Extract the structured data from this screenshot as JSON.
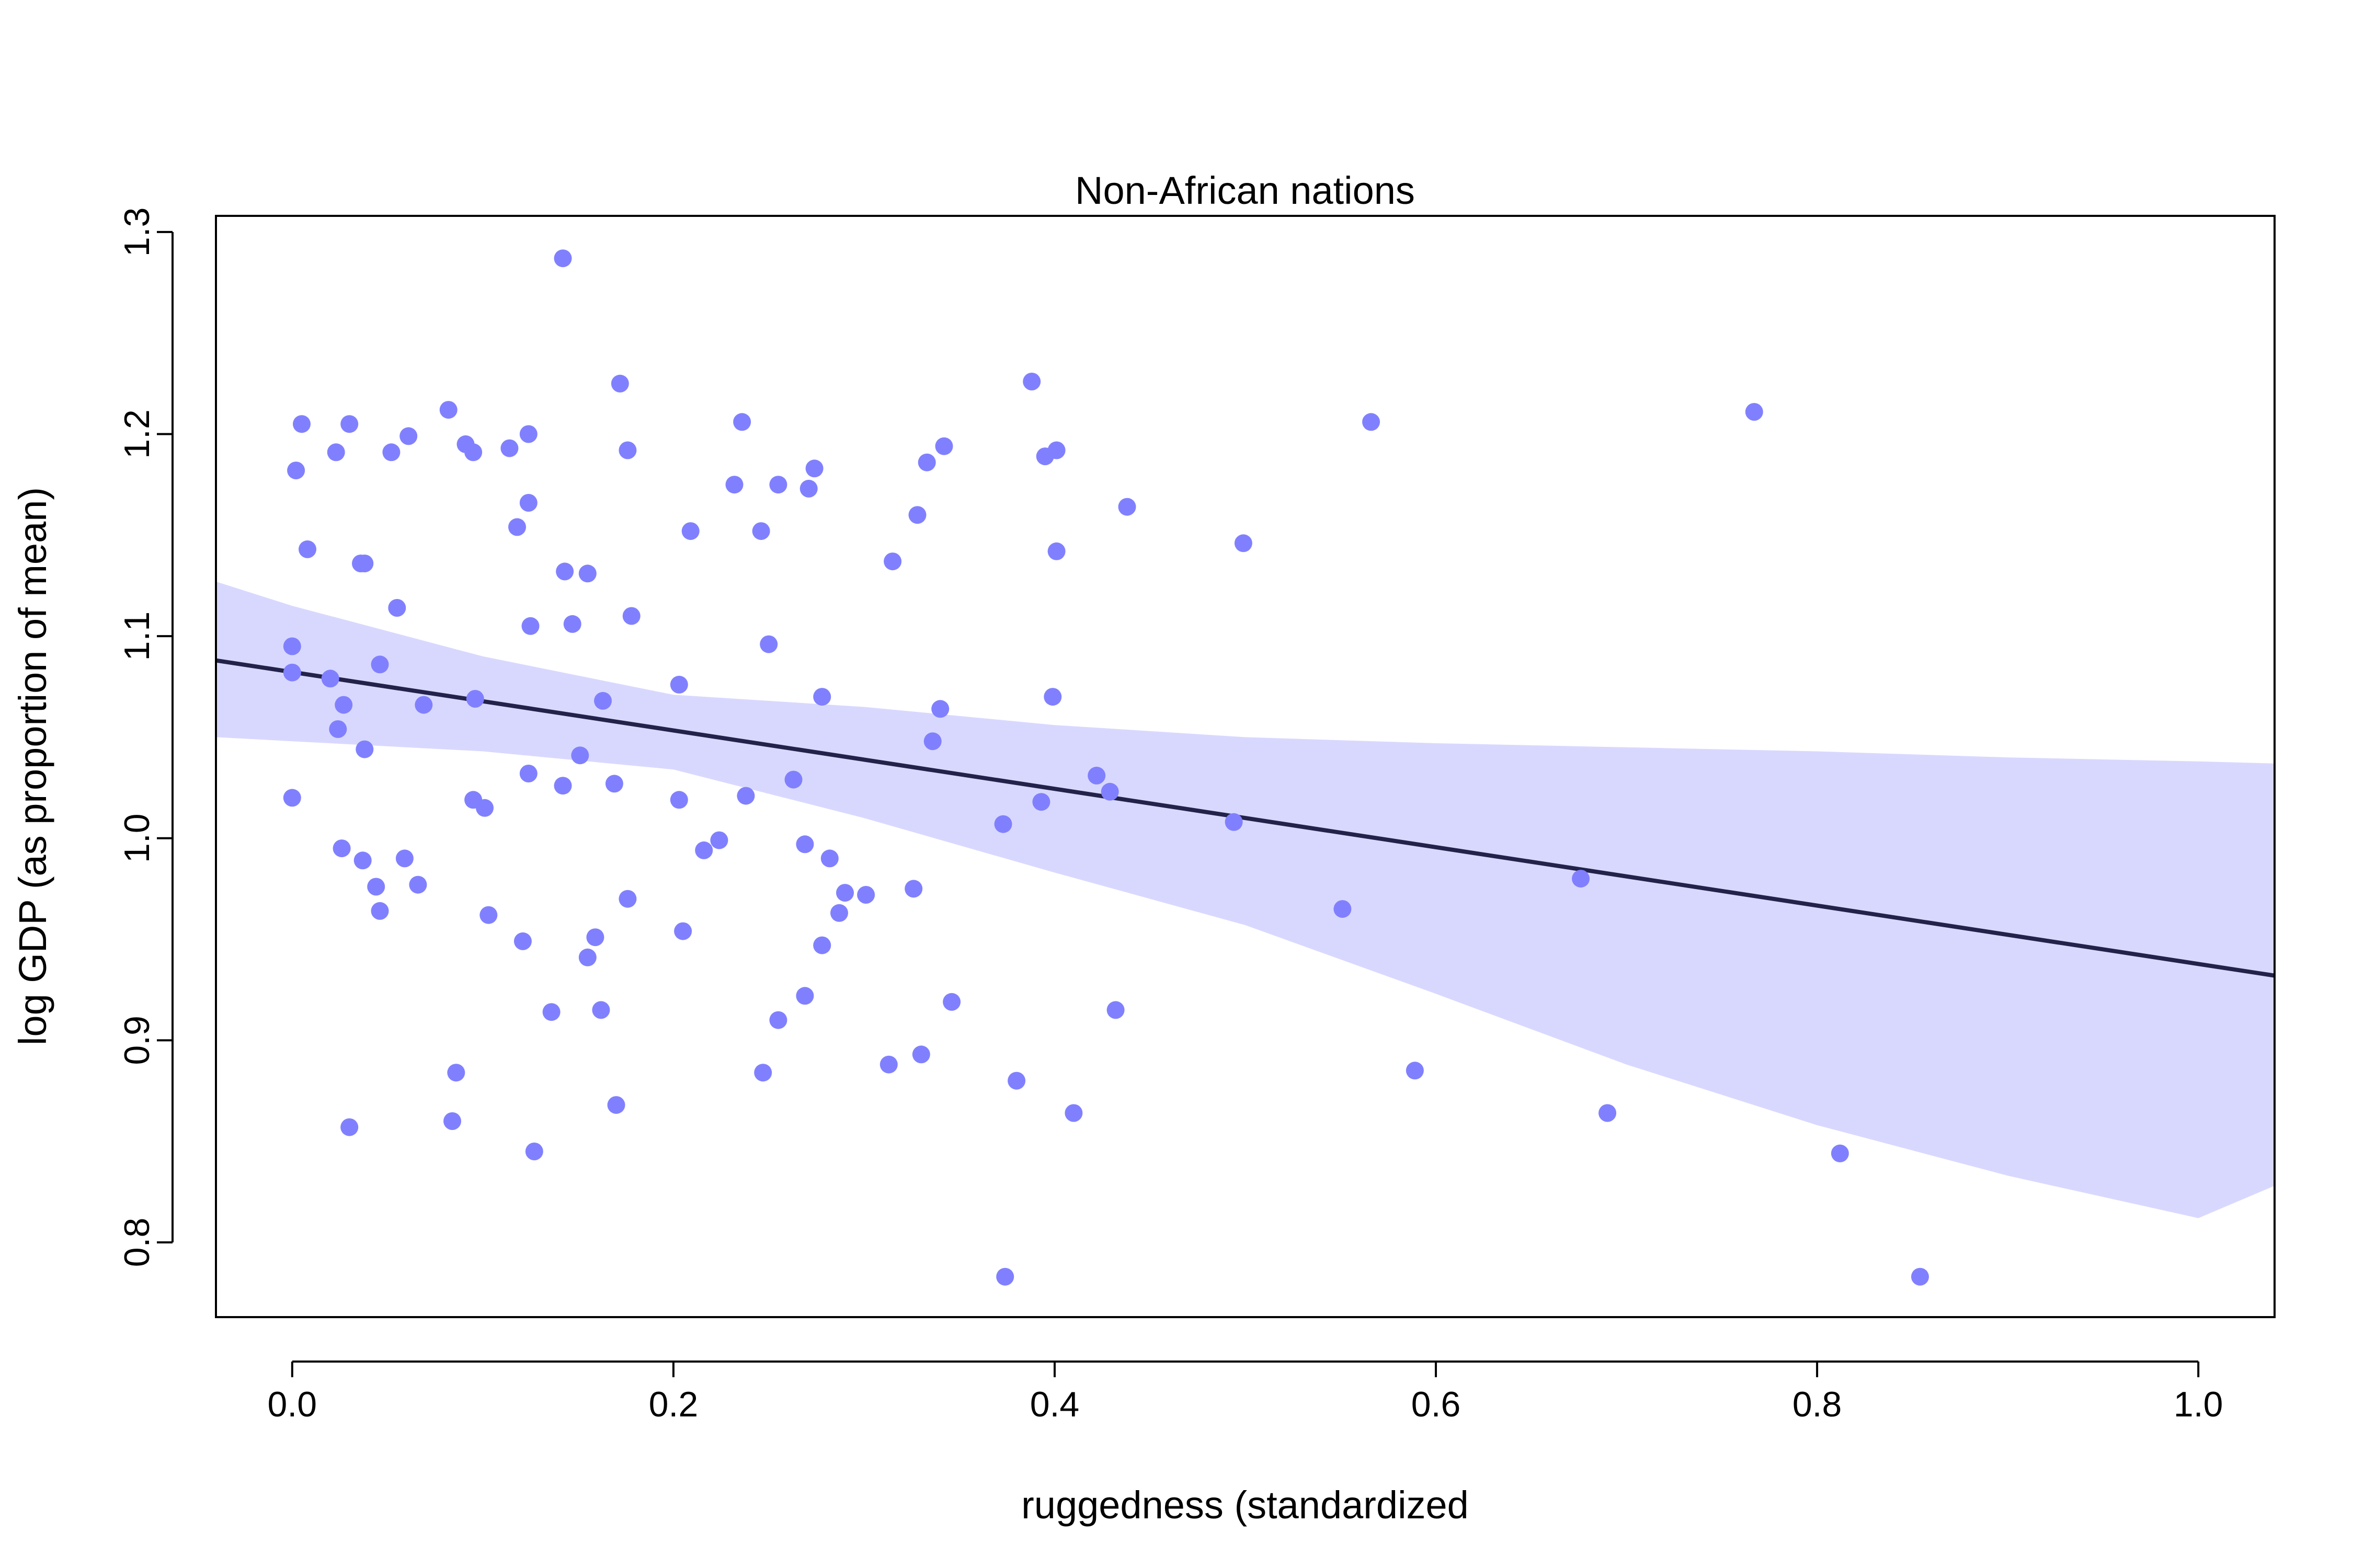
{
  "chart_data": {
    "type": "scatter",
    "title": "Non-African nations",
    "xlabel": "ruggedness (standardized",
    "ylabel": "log GDP (as proportion of mean)",
    "xlim": [
      -0.04,
      1.04
    ],
    "ylim": [
      0.763,
      1.308
    ],
    "xticks": [
      0.0,
      0.2,
      0.4,
      0.6,
      0.8,
      1.0
    ],
    "xtick_labels": [
      "0.0",
      "0.2",
      "0.4",
      "0.6",
      "0.8",
      "1.0"
    ],
    "yticks": [
      0.8,
      0.9,
      1.0,
      1.1,
      1.2,
      1.3
    ],
    "ytick_labels": [
      "0.8",
      "0.9",
      "1.0",
      "1.1",
      "1.2",
      "1.3"
    ],
    "grid": false,
    "colors": {
      "points": "#8080ff",
      "band": "#d8d8ff",
      "line": "#22224a",
      "axes": "#000000"
    },
    "regression_line": {
      "x": [
        -0.04,
        1.04
      ],
      "y": [
        1.088,
        0.932
      ]
    },
    "interval_band": {
      "x": [
        -0.04,
        0.0,
        0.1,
        0.2,
        0.3,
        0.4,
        0.5,
        0.6,
        0.7,
        0.8,
        0.9,
        1.0,
        1.04
      ],
      "upper": [
        1.127,
        1.115,
        1.09,
        1.071,
        1.065,
        1.056,
        1.05,
        1.047,
        1.045,
        1.043,
        1.04,
        1.038,
        1.037
      ],
      "lower": [
        1.05,
        1.048,
        1.043,
        1.034,
        1.01,
        0.983,
        0.957,
        0.923,
        0.888,
        0.858,
        0.833,
        0.812,
        0.828
      ]
    },
    "points": {
      "x": [
        0.142,
        0.388,
        0.172,
        0.566,
        0.767,
        0.005,
        0.03,
        0.082,
        0.124,
        0.061,
        0.091,
        0.114,
        0.052,
        0.095,
        0.176,
        0.023,
        0.342,
        0.401,
        0.002,
        0.236,
        0.333,
        0.395,
        0.274,
        0.271,
        0.232,
        0.255,
        0.124,
        0.438,
        0.328,
        0.118,
        0.209,
        0.246,
        0.499,
        0.008,
        0.401,
        0.315,
        0.038,
        0.036,
        0.143,
        0.155,
        0.055,
        0.178,
        0.147,
        0.125,
        0.0,
        0.046,
        0.0,
        0.203,
        0.02,
        0.278,
        0.399,
        0.096,
        0.027,
        0.069,
        0.163,
        0.34,
        0.024,
        0.336,
        0.038,
        0.151,
        0.422,
        0.124,
        0.25,
        0.263,
        0.142,
        0.169,
        0.429,
        0.0,
        0.095,
        0.203,
        0.238,
        0.393,
        0.101,
        0.373,
        0.494,
        0.224,
        0.269,
        0.026,
        0.216,
        0.282,
        0.059,
        0.037,
        0.676,
        0.044,
        0.066,
        0.326,
        0.29,
        0.301,
        0.176,
        0.046,
        0.287,
        0.551,
        0.103,
        0.205,
        0.159,
        0.121,
        0.278,
        0.155,
        0.346,
        0.269,
        0.136,
        0.162,
        0.432,
        0.255,
        0.17,
        0.33,
        0.313,
        0.086,
        0.247,
        0.589,
        0.38,
        0.084,
        0.41,
        0.69,
        0.03,
        0.127,
        0.812,
        0.374,
        0.854
      ],
      "y": [
        1.287,
        1.226,
        1.225,
        1.206,
        1.211,
        1.205,
        1.205,
        1.212,
        1.2,
        1.199,
        1.195,
        1.193,
        1.191,
        1.191,
        1.192,
        1.191,
        1.194,
        1.192,
        1.182,
        1.206,
        1.186,
        1.189,
        1.183,
        1.173,
        1.175,
        1.175,
        1.166,
        1.164,
        1.16,
        1.154,
        1.152,
        1.152,
        1.146,
        1.143,
        1.142,
        1.137,
        1.136,
        1.136,
        1.132,
        1.131,
        1.114,
        1.11,
        1.106,
        1.105,
        1.095,
        1.086,
        1.082,
        1.076,
        1.079,
        1.07,
        1.07,
        1.069,
        1.066,
        1.066,
        1.068,
        1.064,
        1.054,
        1.048,
        1.044,
        1.041,
        1.031,
        1.032,
        1.096,
        1.029,
        1.026,
        1.027,
        1.023,
        1.02,
        1.019,
        1.019,
        1.021,
        1.018,
        1.015,
        1.007,
        1.008,
        0.999,
        0.997,
        0.995,
        0.994,
        0.99,
        0.99,
        0.989,
        0.98,
        0.976,
        0.977,
        0.975,
        0.973,
        0.972,
        0.97,
        0.964,
        0.963,
        0.965,
        0.962,
        0.954,
        0.951,
        0.949,
        0.947,
        0.941,
        0.919,
        0.922,
        0.914,
        0.915,
        0.915,
        0.91,
        0.868,
        0.893,
        0.888,
        0.884,
        0.884,
        0.885,
        0.88,
        0.86,
        0.864,
        0.864,
        0.857,
        0.845,
        0.844,
        0.783,
        0.783
      ]
    }
  }
}
